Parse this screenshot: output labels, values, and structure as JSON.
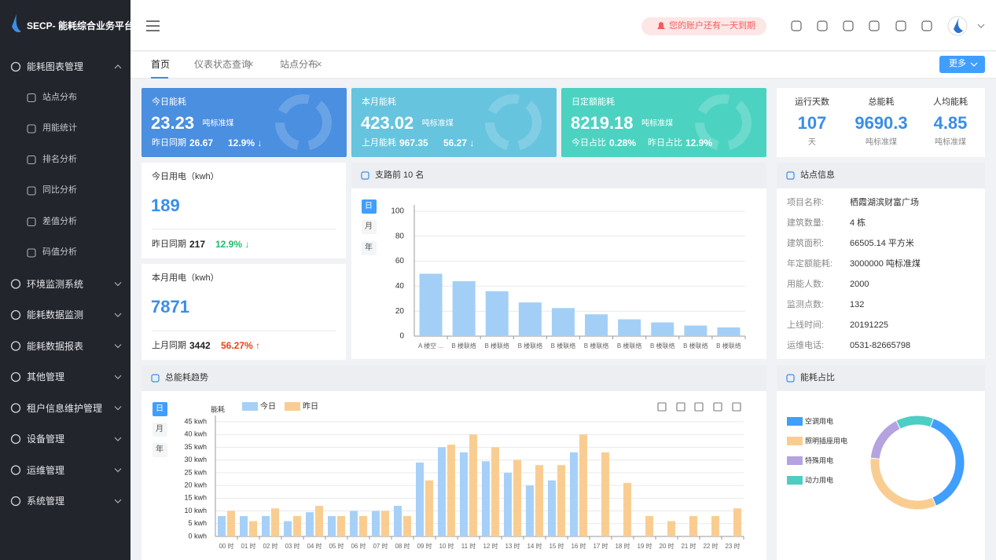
{
  "sidebar": {
    "brand": "SECP- 能耗综合业务平台",
    "menu": [
      {
        "label": "能耗图表管理",
        "expanded": true,
        "children": [
          "站点分布",
          "用能统计",
          "排名分析",
          "同比分析",
          "差值分析",
          "码值分析"
        ]
      },
      {
        "label": "环境监测系统"
      },
      {
        "label": "能耗数据监测"
      },
      {
        "label": "能耗数据报表"
      },
      {
        "label": "其他管理"
      },
      {
        "label": "租户信息维护管理"
      },
      {
        "label": "设备管理"
      },
      {
        "label": "运维管理"
      },
      {
        "label": "系统管理"
      }
    ]
  },
  "header": {
    "notice": "您的账户还有一天到期"
  },
  "tabs": {
    "items": [
      "首页",
      "仪表状态查询",
      "站点分布"
    ],
    "close": "×",
    "more": "更多"
  },
  "kpi_cards": [
    {
      "title": "今日能耗",
      "value": 23.23,
      "unit": "吨标准煤",
      "color": "#4a8fe0",
      "stats": [
        {
          "label": "昨日同期",
          "value": 26.67
        },
        {
          "label": "",
          "value": "12.9% ↓"
        }
      ]
    },
    {
      "title": "本月能耗",
      "value": 423.02,
      "unit": "吨标准煤",
      "color": "#66c4de",
      "stats": [
        {
          "label": "上月能耗",
          "value": 967.35
        },
        {
          "label": "",
          "value": "56.27 ↓"
        }
      ]
    },
    {
      "title": "日定额能耗",
      "value": 8219.18,
      "unit": "吨标准煤",
      "color": "#4cd2c1",
      "stats": [
        {
          "label": "今日占比",
          "value": "0.28%"
        },
        {
          "label": "昨日占比",
          "value": "12.9%"
        }
      ]
    }
  ],
  "summary": [
    {
      "label": "运行天数",
      "value": 107,
      "unit": "天"
    },
    {
      "label": "总能耗",
      "value": 9690.3,
      "unit": "吨标准煤"
    },
    {
      "label": "人均能耗",
      "value": 4.85,
      "unit": "吨标准煤"
    }
  ],
  "power_cards": [
    {
      "title": "今日用电（kwh）",
      "value": 189,
      "compare_label": "昨日同期",
      "compare_value": 217,
      "change": "12.9% ↓",
      "change_color": "#19be6b"
    },
    {
      "title": "本月用电（kwh）",
      "value": 7871,
      "compare_label": "上月同期",
      "compare_value": 3442,
      "change": "56.27% ↑",
      "change_color": "#ed4014"
    }
  ],
  "period_buttons": [
    "日",
    "月",
    "年"
  ],
  "site_info": {
    "title": "站点信息",
    "rows": [
      [
        "项目名称:",
        "栖霞湖滨财富广场"
      ],
      [
        "建筑数量:",
        "4 栋"
      ],
      [
        "建筑面积:",
        "66505.14 平方米"
      ],
      [
        "年定额能耗:",
        "3000000 吨标准煤"
      ],
      [
        "用能人数:",
        "2000"
      ],
      [
        "监测点数:",
        "132"
      ],
      [
        "上线时间:",
        "20191225"
      ],
      [
        "运维电话:",
        "0531-82665798"
      ]
    ]
  },
  "chart_data": [
    {
      "type": "bar",
      "title": "支路前 10 名",
      "categories": [
        "A 楼空 ...",
        "B 楼联络",
        "B 楼联络",
        "B 楼联络",
        "B 楼联络",
        "B 楼联络",
        "B 楼联络",
        "B 楼联络",
        "B 楼联络",
        "B 楼联络"
      ],
      "values": [
        50,
        44,
        36,
        27,
        22.5,
        17.5,
        13.5,
        11,
        8.5,
        7
      ],
      "color": "#a3cff7",
      "ylim": [
        0,
        100
      ],
      "yticks": [
        0,
        20,
        40,
        60,
        80,
        100
      ],
      "grid": true
    },
    {
      "type": "bar",
      "title": "总能耗趋势",
      "y_label": "能耗",
      "categories": [
        "00 时",
        "01 时",
        "02 时",
        "03 时",
        "04 时",
        "05 时",
        "06 时",
        "07 时",
        "08 时",
        "09 时",
        "10 时",
        "11 时",
        "12 时",
        "13 时",
        "14 时",
        "15 时",
        "16 时",
        "17 时",
        "18 时",
        "19 时",
        "20 时",
        "21 时",
        "22 时",
        "23 时"
      ],
      "series": [
        {
          "name": "今日",
          "color": "#a6d0f8",
          "values": [
            8,
            8,
            8,
            6,
            9.5,
            8,
            10,
            10,
            12,
            29,
            35,
            33,
            29.5,
            25,
            20,
            22,
            33,
            null,
            null,
            null,
            null,
            null,
            null,
            null
          ]
        },
        {
          "name": "昨日",
          "color": "#f9cd92",
          "values": [
            10,
            6,
            11,
            8,
            12,
            8,
            8,
            10,
            8,
            22,
            36,
            40,
            35,
            30,
            28,
            28,
            40,
            33,
            21,
            8,
            6,
            8,
            8,
            11
          ]
        }
      ],
      "ylim": [
        0,
        45
      ],
      "yticks": [
        {
          "value": 0,
          "label": "0 kwh"
        },
        {
          "value": 5,
          "label": "5 kwh"
        },
        {
          "value": 10,
          "label": "10 kwh"
        },
        {
          "value": 15,
          "label": "15 kwh"
        },
        {
          "value": 20,
          "label": "20 kwh"
        },
        {
          "value": 25,
          "label": "25 kwh"
        },
        {
          "value": 30,
          "label": "30 kwh"
        },
        {
          "value": 35,
          "label": "35 kwh"
        },
        {
          "value": 40,
          "label": "40 kwh"
        },
        {
          "value": 45,
          "label": "45 kwh"
        }
      ],
      "grid": true
    },
    {
      "type": "pie",
      "title": "能耗占比",
      "categories": [
        "空调用电",
        "照明插座用电",
        "特殊用电",
        "动力用电"
      ],
      "values": [
        38,
        33,
        16,
        13
      ],
      "colors": [
        "#409eff",
        "#f9cd92",
        "#b5a3e0",
        "#4ecdc4"
      ],
      "donut": true
    }
  ]
}
